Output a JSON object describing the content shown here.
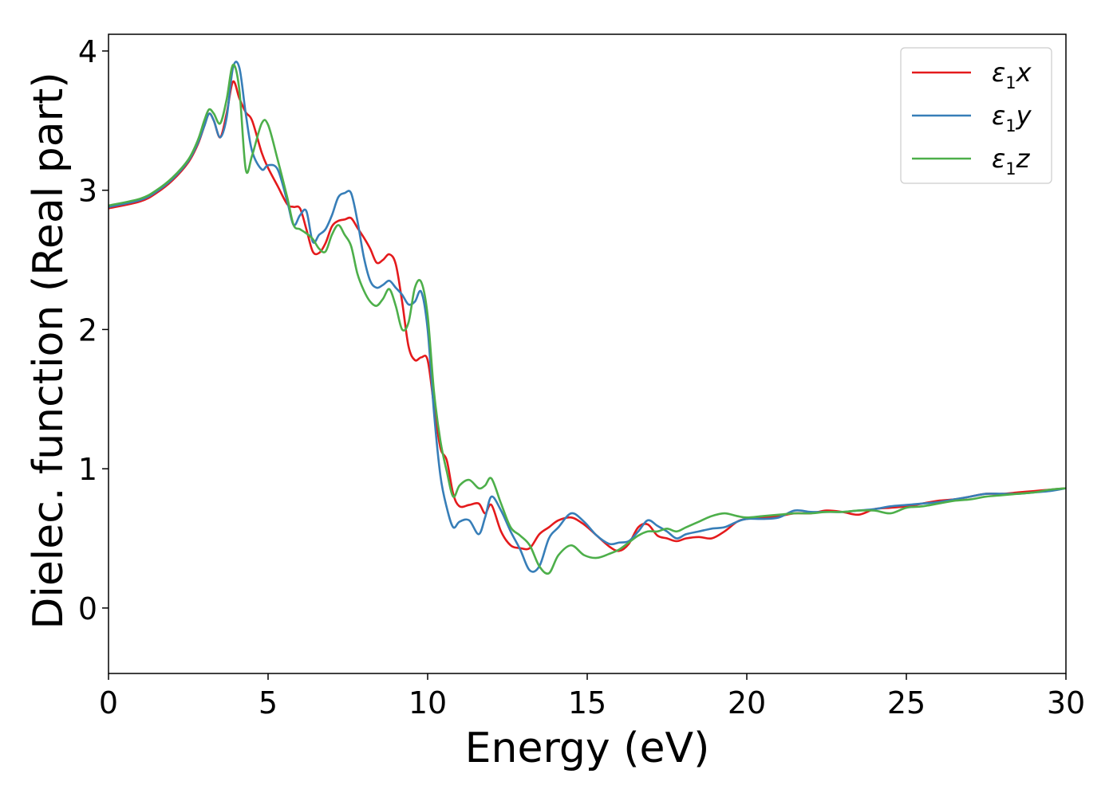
{
  "chart_data": {
    "type": "line",
    "title": "",
    "xlabel": "Energy (eV)",
    "ylabel": "Dielec. function (Real part)",
    "xlim": [
      0,
      30
    ],
    "ylim": [
      -0.47,
      4.12
    ],
    "xticks": [
      0,
      5,
      10,
      15,
      20,
      25,
      30
    ],
    "yticks": [
      0,
      1,
      2,
      3,
      4
    ],
    "grid": false,
    "legend_position": "top-right",
    "series": [
      {
        "name": "ε1x",
        "legend": {
          "base": "ε",
          "sub": "1",
          "var": "x"
        },
        "color": "#e41a1c",
        "x": [
          0,
          1,
          1.5,
          2,
          2.5,
          2.8,
          3.0,
          3.15,
          3.3,
          3.5,
          3.7,
          3.9,
          4.1,
          4.3,
          4.5,
          4.8,
          5.0,
          5.3,
          5.6,
          5.8,
          6.0,
          6.2,
          6.4,
          6.6,
          6.8,
          7.0,
          7.2,
          7.4,
          7.6,
          7.8,
          8.0,
          8.2,
          8.4,
          8.6,
          8.8,
          9.0,
          9.2,
          9.4,
          9.6,
          9.8,
          10.0,
          10.2,
          10.4,
          10.6,
          10.8,
          11.0,
          11.3,
          11.6,
          11.8,
          12.0,
          12.3,
          12.6,
          12.9,
          13.2,
          13.5,
          13.8,
          14.1,
          14.5,
          14.9,
          15.3,
          15.7,
          16.0,
          16.3,
          16.6,
          16.9,
          17.2,
          17.5,
          17.8,
          18.1,
          18.5,
          18.9,
          19.3,
          19.7,
          20.0,
          20.5,
          21.0,
          21.5,
          22.0,
          22.5,
          23.0,
          23.5,
          24.0,
          24.5,
          25.0,
          25.5,
          26.0,
          26.5,
          27.0,
          27.5,
          28.0,
          28.5,
          29.0,
          29.5,
          30.0
        ],
        "y": [
          2.87,
          2.92,
          2.98,
          3.07,
          3.2,
          3.33,
          3.46,
          3.55,
          3.5,
          3.38,
          3.55,
          3.78,
          3.66,
          3.56,
          3.5,
          3.27,
          3.16,
          3.03,
          2.9,
          2.88,
          2.87,
          2.72,
          2.56,
          2.55,
          2.62,
          2.74,
          2.78,
          2.79,
          2.8,
          2.73,
          2.66,
          2.58,
          2.48,
          2.5,
          2.54,
          2.47,
          2.2,
          1.88,
          1.78,
          1.8,
          1.78,
          1.45,
          1.15,
          1.06,
          0.82,
          0.73,
          0.74,
          0.75,
          0.68,
          0.74,
          0.55,
          0.45,
          0.43,
          0.43,
          0.53,
          0.58,
          0.63,
          0.65,
          0.6,
          0.52,
          0.44,
          0.41,
          0.46,
          0.58,
          0.6,
          0.52,
          0.5,
          0.48,
          0.5,
          0.51,
          0.5,
          0.55,
          0.62,
          0.64,
          0.65,
          0.66,
          0.68,
          0.68,
          0.7,
          0.69,
          0.67,
          0.71,
          0.72,
          0.73,
          0.75,
          0.77,
          0.78,
          0.8,
          0.82,
          0.82,
          0.83,
          0.84,
          0.85,
          0.86
        ]
      },
      {
        "name": "ε1y",
        "legend": {
          "base": "ε",
          "sub": "1",
          "var": "y"
        },
        "color": "#377eb8",
        "x": [
          0,
          1,
          1.5,
          2,
          2.5,
          2.8,
          3.0,
          3.15,
          3.3,
          3.5,
          3.7,
          3.9,
          4.1,
          4.3,
          4.5,
          4.8,
          5.0,
          5.3,
          5.6,
          5.8,
          6.0,
          6.2,
          6.4,
          6.6,
          6.8,
          7.0,
          7.2,
          7.4,
          7.6,
          7.8,
          8.0,
          8.2,
          8.4,
          8.6,
          8.8,
          9.0,
          9.2,
          9.4,
          9.6,
          9.8,
          10.0,
          10.2,
          10.4,
          10.6,
          10.8,
          11.0,
          11.3,
          11.6,
          11.8,
          12.0,
          12.3,
          12.6,
          12.9,
          13.2,
          13.5,
          13.8,
          14.1,
          14.5,
          14.9,
          15.3,
          15.7,
          16.0,
          16.3,
          16.6,
          16.9,
          17.2,
          17.5,
          17.8,
          18.1,
          18.5,
          18.9,
          19.3,
          19.7,
          20.0,
          20.5,
          21.0,
          21.5,
          22.0,
          22.5,
          23.0,
          23.5,
          24.0,
          24.5,
          25.0,
          25.5,
          26.0,
          26.5,
          27.0,
          27.5,
          28.0,
          28.5,
          29.0,
          29.5,
          30.0
        ],
        "y": [
          2.88,
          2.93,
          2.99,
          3.08,
          3.21,
          3.34,
          3.46,
          3.55,
          3.5,
          3.38,
          3.52,
          3.88,
          3.88,
          3.55,
          3.28,
          3.15,
          3.18,
          3.15,
          2.92,
          2.75,
          2.82,
          2.85,
          2.63,
          2.68,
          2.72,
          2.82,
          2.95,
          2.98,
          2.98,
          2.78,
          2.52,
          2.35,
          2.3,
          2.32,
          2.35,
          2.3,
          2.25,
          2.18,
          2.2,
          2.27,
          2.0,
          1.4,
          0.95,
          0.72,
          0.58,
          0.62,
          0.63,
          0.53,
          0.65,
          0.8,
          0.7,
          0.55,
          0.42,
          0.27,
          0.3,
          0.5,
          0.58,
          0.68,
          0.62,
          0.52,
          0.46,
          0.47,
          0.48,
          0.55,
          0.63,
          0.59,
          0.55,
          0.5,
          0.53,
          0.55,
          0.57,
          0.58,
          0.62,
          0.64,
          0.64,
          0.65,
          0.7,
          0.69,
          0.69,
          0.69,
          0.7,
          0.71,
          0.73,
          0.74,
          0.75,
          0.76,
          0.78,
          0.8,
          0.82,
          0.82,
          0.82,
          0.83,
          0.84,
          0.86
        ]
      },
      {
        "name": "ε1z",
        "legend": {
          "base": "ε",
          "sub": "1",
          "var": "z"
        },
        "color": "#4daf4a",
        "x": [
          0,
          1,
          1.5,
          2,
          2.5,
          2.8,
          3.0,
          3.15,
          3.3,
          3.5,
          3.7,
          3.9,
          4.1,
          4.3,
          4.5,
          4.8,
          5.0,
          5.3,
          5.6,
          5.8,
          6.0,
          6.2,
          6.4,
          6.6,
          6.8,
          7.0,
          7.2,
          7.4,
          7.6,
          7.8,
          8.0,
          8.2,
          8.4,
          8.6,
          8.8,
          9.0,
          9.2,
          9.4,
          9.6,
          9.8,
          10.0,
          10.2,
          10.4,
          10.6,
          10.8,
          11.0,
          11.3,
          11.6,
          11.8,
          12.0,
          12.3,
          12.6,
          12.9,
          13.2,
          13.5,
          13.8,
          14.1,
          14.5,
          14.9,
          15.3,
          15.7,
          16.0,
          16.3,
          16.6,
          16.9,
          17.2,
          17.5,
          17.8,
          18.1,
          18.5,
          18.9,
          19.3,
          19.7,
          20.0,
          20.5,
          21.0,
          21.5,
          22.0,
          22.5,
          23.0,
          23.5,
          24.0,
          24.5,
          25.0,
          25.5,
          26.0,
          26.5,
          27.0,
          27.5,
          28.0,
          28.5,
          29.0,
          29.5,
          30.0
        ],
        "y": [
          2.89,
          2.94,
          3.0,
          3.09,
          3.22,
          3.36,
          3.5,
          3.58,
          3.55,
          3.48,
          3.65,
          3.9,
          3.72,
          3.15,
          3.25,
          3.48,
          3.47,
          3.22,
          2.95,
          2.75,
          2.72,
          2.69,
          2.65,
          2.58,
          2.56,
          2.68,
          2.75,
          2.68,
          2.6,
          2.4,
          2.28,
          2.2,
          2.17,
          2.22,
          2.29,
          2.17,
          2.0,
          2.05,
          2.3,
          2.34,
          2.1,
          1.55,
          1.2,
          0.98,
          0.8,
          0.88,
          0.92,
          0.86,
          0.88,
          0.93,
          0.75,
          0.58,
          0.52,
          0.45,
          0.3,
          0.25,
          0.38,
          0.45,
          0.38,
          0.36,
          0.39,
          0.42,
          0.47,
          0.52,
          0.55,
          0.55,
          0.57,
          0.55,
          0.58,
          0.62,
          0.66,
          0.68,
          0.66,
          0.65,
          0.66,
          0.67,
          0.68,
          0.68,
          0.69,
          0.69,
          0.7,
          0.7,
          0.68,
          0.72,
          0.73,
          0.75,
          0.77,
          0.78,
          0.8,
          0.81,
          0.82,
          0.83,
          0.85,
          0.86
        ]
      }
    ]
  }
}
